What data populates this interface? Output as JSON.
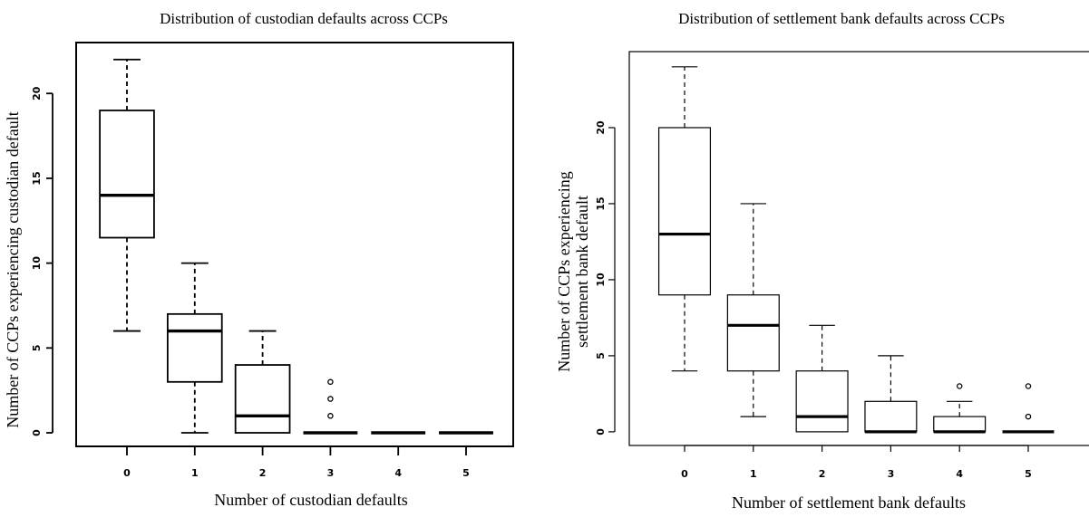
{
  "chart_data": [
    {
      "type": "boxplot",
      "title": "Distribution of custodian defaults across CCPs",
      "xlabel": "Number of custodian defaults",
      "ylabel": "Number of CCPs experiencing custodian default",
      "categories": [
        "0",
        "1",
        "2",
        "3",
        "4",
        "5"
      ],
      "ylim": [
        -0.8,
        23
      ],
      "yticks": [
        0,
        5,
        10,
        15,
        20
      ],
      "box_width": 0.8,
      "boxes": [
        {
          "whisker_low": 6,
          "q1": 11.5,
          "median": 14,
          "q3": 19,
          "whisker_high": 22,
          "outliers": []
        },
        {
          "whisker_low": 0,
          "q1": 3,
          "median": 6,
          "q3": 7,
          "whisker_high": 10,
          "outliers": []
        },
        {
          "whisker_low": 0,
          "q1": 0,
          "median": 1,
          "q3": 4,
          "whisker_high": 6,
          "outliers": []
        },
        {
          "whisker_low": 0,
          "q1": 0,
          "median": 0,
          "q3": 0,
          "whisker_high": 0,
          "outliers": [
            1,
            2,
            3
          ]
        },
        {
          "whisker_low": 0,
          "q1": 0,
          "median": 0,
          "q3": 0,
          "whisker_high": 0,
          "outliers": []
        },
        {
          "whisker_low": 0,
          "q1": 0,
          "median": 0,
          "q3": 0,
          "whisker_high": 0,
          "outliers": []
        }
      ]
    },
    {
      "type": "boxplot",
      "title": "Distribution of settlement bank defaults across CCPs",
      "xlabel": "Number of settlement bank defaults",
      "ylabel": [
        "Number of CCPs experiencing",
        "settlement bank default"
      ],
      "categories": [
        "0",
        "1",
        "2",
        "3",
        "4",
        "5"
      ],
      "ylim": [
        -0.9,
        25
      ],
      "yticks": [
        0,
        5,
        10,
        15,
        20
      ],
      "box_width": 0.75,
      "boxes": [
        {
          "whisker_low": 4,
          "q1": 9,
          "median": 13,
          "q3": 20,
          "whisker_high": 24,
          "outliers": []
        },
        {
          "whisker_low": 1,
          "q1": 4,
          "median": 7,
          "q3": 9,
          "whisker_high": 15,
          "outliers": []
        },
        {
          "whisker_low": 0,
          "q1": 0,
          "median": 1,
          "q3": 4,
          "whisker_high": 7,
          "outliers": []
        },
        {
          "whisker_low": 0,
          "q1": 0,
          "median": 0,
          "q3": 2,
          "whisker_high": 5,
          "outliers": []
        },
        {
          "whisker_low": 0,
          "q1": 0,
          "median": 0,
          "q3": 1,
          "whisker_high": 2,
          "outliers": [
            3
          ]
        },
        {
          "whisker_low": 0,
          "q1": 0,
          "median": 0,
          "q3": 0,
          "whisker_high": 0,
          "outliers": [
            1,
            3
          ]
        }
      ]
    }
  ]
}
